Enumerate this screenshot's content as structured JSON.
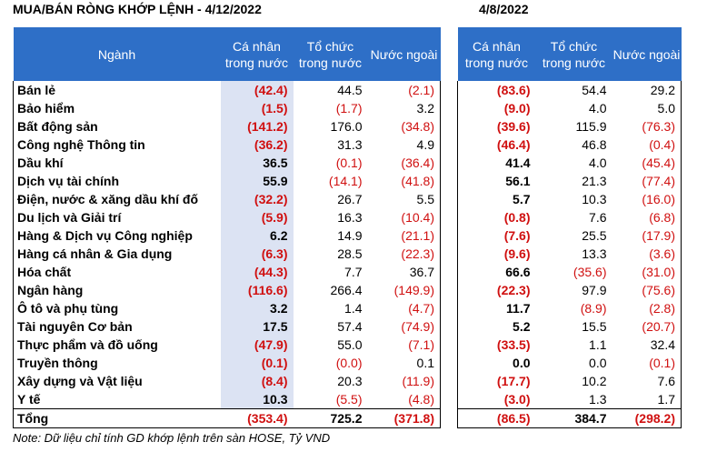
{
  "left_title": "MUA/BÁN RÒNG KHỚP LỆNH - 4/12/2022",
  "right_title": "4/8/2022",
  "headers": {
    "sector": "Ngành",
    "individual": "Cá nhân trong nước",
    "institution": "Tổ chức trong nước",
    "foreign": "Nước ngoài"
  },
  "rows": [
    {
      "sector": "Bán lẻ",
      "l": [
        "(42.4)",
        "44.5",
        "(2.1)"
      ],
      "r": [
        "(83.6)",
        "54.4",
        "29.2"
      ]
    },
    {
      "sector": "Bảo hiểm",
      "l": [
        "(1.5)",
        "(1.7)",
        "3.2"
      ],
      "r": [
        "(9.0)",
        "4.0",
        "5.0"
      ]
    },
    {
      "sector": "Bất động sản",
      "l": [
        "(141.2)",
        "176.0",
        "(34.8)"
      ],
      "r": [
        "(39.6)",
        "115.9",
        "(76.3)"
      ]
    },
    {
      "sector": "Công nghệ Thông tin",
      "l": [
        "(36.2)",
        "31.3",
        "4.9"
      ],
      "r": [
        "(46.4)",
        "46.8",
        "(0.4)"
      ]
    },
    {
      "sector": "Dầu khí",
      "l": [
        "36.5",
        "(0.1)",
        "(36.4)"
      ],
      "r": [
        "41.4",
        "4.0",
        "(45.4)"
      ]
    },
    {
      "sector": "Dịch vụ tài chính",
      "l": [
        "55.9",
        "(14.1)",
        "(41.8)"
      ],
      "r": [
        "56.1",
        "21.3",
        "(77.4)"
      ]
    },
    {
      "sector": "Điện, nước & xăng dầu khí đố",
      "l": [
        "(32.2)",
        "26.7",
        "5.5"
      ],
      "r": [
        "5.7",
        "10.3",
        "(16.0)"
      ]
    },
    {
      "sector": "Du lịch và Giải trí",
      "l": [
        "(5.9)",
        "16.3",
        "(10.4)"
      ],
      "r": [
        "(0.8)",
        "7.6",
        "(6.8)"
      ]
    },
    {
      "sector": "Hàng & Dịch vụ Công nghiệp",
      "l": [
        "6.2",
        "14.9",
        "(21.1)"
      ],
      "r": [
        "(7.6)",
        "25.5",
        "(17.9)"
      ]
    },
    {
      "sector": "Hàng cá nhân & Gia dụng",
      "l": [
        "(6.3)",
        "28.5",
        "(22.3)"
      ],
      "r": [
        "(9.6)",
        "13.3",
        "(3.6)"
      ]
    },
    {
      "sector": "Hóa chất",
      "l": [
        "(44.3)",
        "7.7",
        "36.7"
      ],
      "r": [
        "66.6",
        "(35.6)",
        "(31.0)"
      ]
    },
    {
      "sector": "Ngân hàng",
      "l": [
        "(116.6)",
        "266.4",
        "(149.9)"
      ],
      "r": [
        "(22.3)",
        "97.9",
        "(75.6)"
      ]
    },
    {
      "sector": "Ô tô và phụ tùng",
      "l": [
        "3.2",
        "1.4",
        "(4.7)"
      ],
      "r": [
        "11.7",
        "(8.9)",
        "(2.8)"
      ]
    },
    {
      "sector": "Tài nguyên Cơ bản",
      "l": [
        "17.5",
        "57.4",
        "(74.9)"
      ],
      "r": [
        "5.2",
        "15.5",
        "(20.7)"
      ]
    },
    {
      "sector": "Thực phẩm và đồ uống",
      "l": [
        "(47.9)",
        "55.0",
        "(7.1)"
      ],
      "r": [
        "(33.5)",
        "1.1",
        "32.4"
      ]
    },
    {
      "sector": "Truyền thông",
      "l": [
        "(0.1)",
        "(0.0)",
        "0.1"
      ],
      "r": [
        "0.0",
        "0.0",
        "(0.1)"
      ]
    },
    {
      "sector": "Xây dựng và Vật liệu",
      "l": [
        "(8.4)",
        "20.3",
        "(11.9)"
      ],
      "r": [
        "(17.7)",
        "10.2",
        "7.6"
      ]
    },
    {
      "sector": "Y tế",
      "l": [
        "10.3",
        "(5.5)",
        "(4.8)"
      ],
      "r": [
        "(3.0)",
        "1.3",
        "1.7"
      ]
    }
  ],
  "total": {
    "sector": "Tổng",
    "l": [
      "(353.4)",
      "725.2",
      "(371.8)"
    ],
    "r": [
      "(86.5)",
      "384.7",
      "(298.2)"
    ]
  },
  "note": "Note: Dữ liệu chỉ tính GD khớp lệnh trên sàn HOSE, Tỷ VND",
  "colors": {
    "header_bg": "#2e6fc7",
    "highlight_col": "#dce3f3",
    "negative": "#d01010"
  }
}
